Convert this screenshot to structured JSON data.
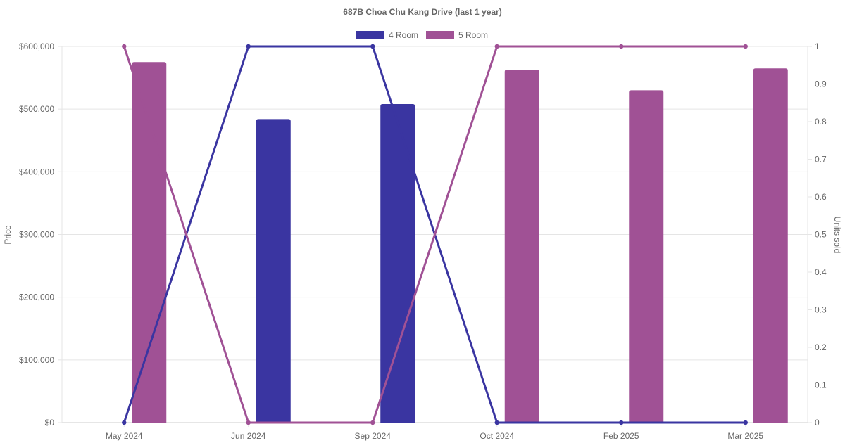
{
  "chart_data": {
    "type": "bar",
    "title": "687B Choa Chu Kang Drive (last 1 year)",
    "categories": [
      "May 2024",
      "Jun 2024",
      "Sep 2024",
      "Oct 2024",
      "Feb 2025",
      "Mar 2025"
    ],
    "legend_position": "top",
    "grid": true,
    "y_left": {
      "label": "Price",
      "ylim": [
        0,
        600000
      ],
      "ticks": [
        "$0",
        "$100,000",
        "$200,000",
        "$300,000",
        "$400,000",
        "$500,000",
        "$600,000"
      ]
    },
    "y_right": {
      "label": "Units sold",
      "ylim": [
        0,
        1
      ],
      "ticks": [
        "0",
        "0.1",
        "0.2",
        "0.3",
        "0.4",
        "0.5",
        "0.6",
        "0.7",
        "0.8",
        "0.9",
        "1"
      ]
    },
    "series": [
      {
        "name": "4 Room",
        "color": "#3a35a1",
        "price_values": [
          null,
          484000,
          508000,
          null,
          null,
          null
        ],
        "units_values": [
          0,
          1,
          1,
          0,
          0,
          0
        ]
      },
      {
        "name": "5 Room",
        "color": "#a05195",
        "price_values": [
          575000,
          null,
          null,
          563000,
          530000,
          565000
        ],
        "units_values": [
          1,
          0,
          0,
          1,
          1,
          1
        ]
      }
    ]
  }
}
